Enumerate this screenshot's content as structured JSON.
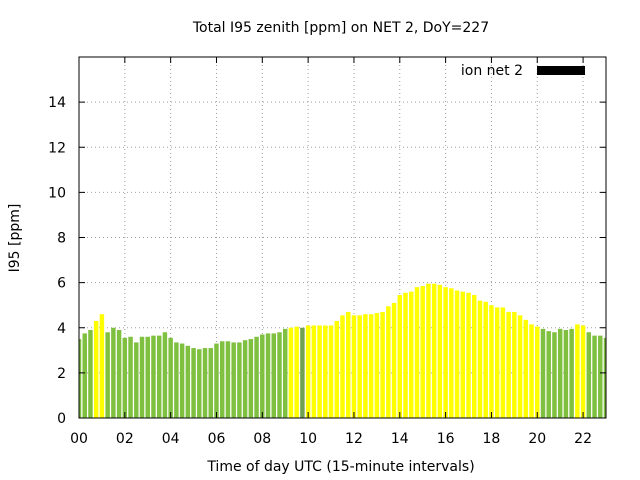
{
  "chart_data": {
    "type": "bar",
    "title": "Total I95 zenith [ppm] on NET 2, DoY=227",
    "xlabel": "Time of day UTC (15-minute intervals)",
    "ylabel": "I95 [ppm]",
    "xlim": [
      0,
      23
    ],
    "ylim": [
      0,
      16
    ],
    "x_ticks": [
      "00",
      "02",
      "04",
      "06",
      "08",
      "10",
      "12",
      "14",
      "16",
      "18",
      "20",
      "22"
    ],
    "y_ticks": [
      "0",
      "2",
      "4",
      "6",
      "8",
      "10",
      "12",
      "14"
    ],
    "grid": true,
    "legend": {
      "position": "top-right",
      "label": "ion net 2",
      "color": "#000000"
    },
    "colors": {
      "green": "#80c040",
      "yellow": "#ffff00",
      "grey_green": "#70a050"
    },
    "bar_interval_hours": 0.25,
    "values": [
      3.5,
      3.75,
      3.9,
      4.3,
      4.6,
      3.8,
      4.0,
      3.9,
      3.55,
      3.6,
      3.35,
      3.6,
      3.6,
      3.65,
      3.65,
      3.8,
      3.55,
      3.35,
      3.3,
      3.2,
      3.1,
      3.05,
      3.1,
      3.1,
      3.3,
      3.4,
      3.4,
      3.35,
      3.35,
      3.45,
      3.5,
      3.6,
      3.7,
      3.75,
      3.75,
      3.8,
      3.95,
      4.0,
      4.05,
      4.0,
      4.1,
      4.1,
      4.1,
      4.1,
      4.1,
      4.3,
      4.55,
      4.7,
      4.55,
      4.55,
      4.6,
      4.6,
      4.65,
      4.7,
      4.95,
      5.1,
      5.45,
      5.55,
      5.6,
      5.8,
      5.85,
      5.95,
      5.95,
      5.9,
      5.8,
      5.75,
      5.65,
      5.6,
      5.55,
      5.45,
      5.2,
      5.15,
      5.0,
      4.9,
      4.9,
      4.7,
      4.7,
      4.55,
      4.35,
      4.15,
      4.05,
      3.95,
      3.85,
      3.8,
      3.95,
      3.9,
      3.95,
      4.15,
      4.1,
      3.8,
      3.65,
      3.65,
      3.55
    ],
    "bar_colors": [
      "green",
      "green",
      "green",
      "yellow",
      "yellow",
      "green",
      "green",
      "green",
      "green",
      "green",
      "green",
      "green",
      "green",
      "green",
      "green",
      "green",
      "green",
      "green",
      "green",
      "green",
      "green",
      "green",
      "green",
      "green",
      "green",
      "green",
      "green",
      "green",
      "green",
      "green",
      "green",
      "green",
      "green",
      "green",
      "green",
      "green",
      "green",
      "yellow",
      "yellow",
      "grey_green",
      "yellow",
      "yellow",
      "yellow",
      "yellow",
      "yellow",
      "yellow",
      "yellow",
      "yellow",
      "yellow",
      "yellow",
      "yellow",
      "yellow",
      "yellow",
      "yellow",
      "yellow",
      "yellow",
      "yellow",
      "yellow",
      "yellow",
      "yellow",
      "yellow",
      "yellow",
      "yellow",
      "yellow",
      "yellow",
      "yellow",
      "yellow",
      "yellow",
      "yellow",
      "yellow",
      "yellow",
      "yellow",
      "yellow",
      "yellow",
      "yellow",
      "yellow",
      "yellow",
      "yellow",
      "yellow",
      "yellow",
      "yellow",
      "green",
      "green",
      "green",
      "green",
      "green",
      "green",
      "yellow",
      "yellow",
      "green",
      "green",
      "green",
      "green"
    ]
  }
}
